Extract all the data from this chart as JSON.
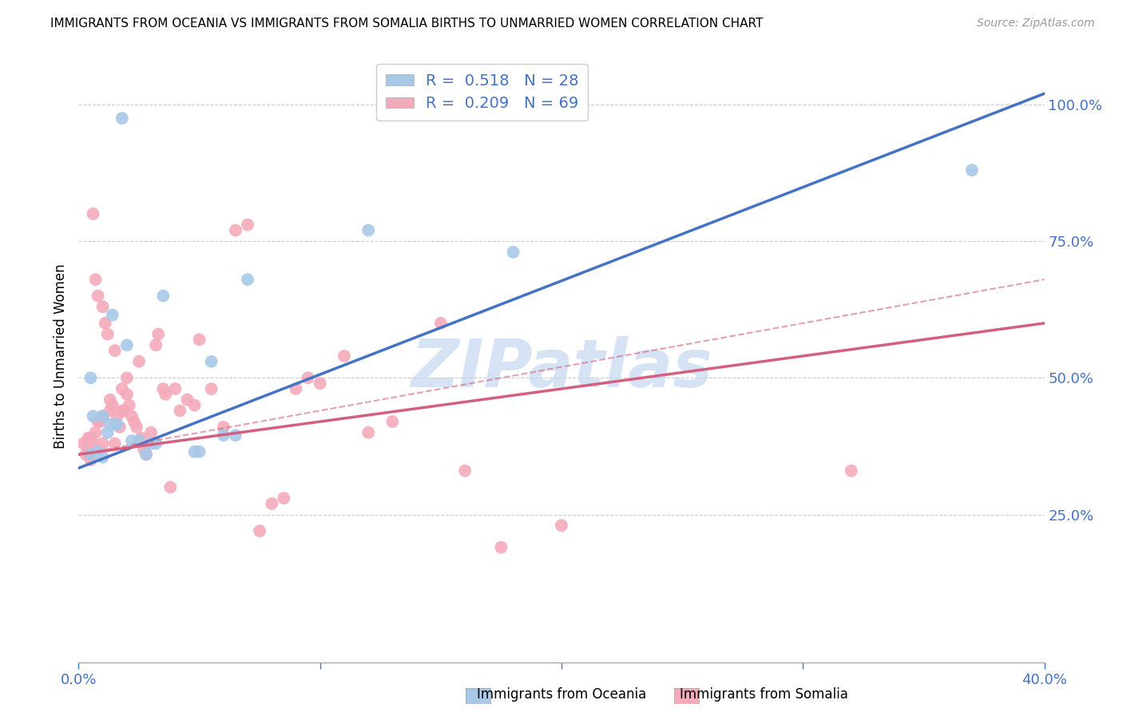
{
  "title": "IMMIGRANTS FROM OCEANIA VS IMMIGRANTS FROM SOMALIA BIRTHS TO UNMARRIED WOMEN CORRELATION CHART",
  "source": "Source: ZipAtlas.com",
  "ylabel": "Births to Unmarried Women",
  "xlim": [
    0.0,
    0.4
  ],
  "ylim": [
    -0.02,
    1.1
  ],
  "xtick_positions": [
    0.0,
    0.1,
    0.2,
    0.3,
    0.4
  ],
  "xticklabels": [
    "0.0%",
    "",
    "",
    "",
    "40.0%"
  ],
  "ytick_right_positions": [
    0.25,
    0.5,
    0.75,
    1.0
  ],
  "ytick_right_labels": [
    "25.0%",
    "50.0%",
    "75.0%",
    "100.0%"
  ],
  "legend_text1": "R =  0.518   N = 28",
  "legend_text2": "R =  0.209   N = 69",
  "color_oceania": "#a8c8e8",
  "color_somalia": "#f4aabb",
  "line_color_oceania": "#4472c4",
  "line_color_somalia": "#d46080",
  "watermark": "ZIPatlas",
  "watermark_color": "#c5d8f0",
  "grid_color": "#cccccc",
  "bottom_label_oceania": "Immigrants from Oceania",
  "bottom_label_somalia": "Immigrants from Somalia",
  "oceania_x": [
    0.005,
    0.005,
    0.006,
    0.008,
    0.01,
    0.01,
    0.012,
    0.013,
    0.014,
    0.015,
    0.016,
    0.018,
    0.02,
    0.022,
    0.025,
    0.028,
    0.03,
    0.032,
    0.035,
    0.048,
    0.05,
    0.055,
    0.06,
    0.065,
    0.07,
    0.12,
    0.18,
    0.37
  ],
  "oceania_y": [
    0.36,
    0.5,
    0.43,
    0.365,
    0.355,
    0.43,
    0.4,
    0.415,
    0.615,
    0.415,
    0.415,
    0.975,
    0.56,
    0.385,
    0.385,
    0.36,
    0.38,
    0.38,
    0.65,
    0.365,
    0.365,
    0.53,
    0.395,
    0.395,
    0.68,
    0.77,
    0.73,
    0.88
  ],
  "somalia_x": [
    0.002,
    0.003,
    0.004,
    0.004,
    0.005,
    0.005,
    0.005,
    0.005,
    0.006,
    0.006,
    0.007,
    0.007,
    0.008,
    0.008,
    0.009,
    0.01,
    0.01,
    0.01,
    0.011,
    0.012,
    0.013,
    0.013,
    0.014,
    0.015,
    0.015,
    0.016,
    0.017,
    0.018,
    0.018,
    0.019,
    0.02,
    0.02,
    0.021,
    0.022,
    0.023,
    0.024,
    0.025,
    0.026,
    0.027,
    0.028,
    0.03,
    0.032,
    0.033,
    0.035,
    0.036,
    0.038,
    0.04,
    0.042,
    0.045,
    0.048,
    0.05,
    0.055,
    0.06,
    0.065,
    0.07,
    0.075,
    0.08,
    0.085,
    0.09,
    0.095,
    0.1,
    0.11,
    0.12,
    0.13,
    0.15,
    0.16,
    0.175,
    0.2,
    0.32
  ],
  "somalia_y": [
    0.38,
    0.36,
    0.37,
    0.39,
    0.35,
    0.36,
    0.37,
    0.39,
    0.38,
    0.8,
    0.4,
    0.68,
    0.42,
    0.65,
    0.42,
    0.38,
    0.43,
    0.63,
    0.6,
    0.58,
    0.44,
    0.46,
    0.45,
    0.38,
    0.55,
    0.43,
    0.41,
    0.44,
    0.48,
    0.44,
    0.47,
    0.5,
    0.45,
    0.43,
    0.42,
    0.41,
    0.53,
    0.39,
    0.37,
    0.36,
    0.4,
    0.56,
    0.58,
    0.48,
    0.47,
    0.3,
    0.48,
    0.44,
    0.46,
    0.45,
    0.57,
    0.48,
    0.41,
    0.77,
    0.78,
    0.22,
    0.27,
    0.28,
    0.48,
    0.5,
    0.49,
    0.54,
    0.4,
    0.42,
    0.6,
    0.33,
    0.19,
    0.23,
    0.33
  ],
  "line_oceania_x0": 0.0,
  "line_oceania_y0": 0.335,
  "line_oceania_x1": 0.4,
  "line_oceania_y1": 1.02,
  "line_somalia_x0": 0.0,
  "line_somalia_y0": 0.36,
  "line_somalia_x1": 0.4,
  "line_somalia_y1": 0.6,
  "line_somalia_dash_y1": 0.68
}
